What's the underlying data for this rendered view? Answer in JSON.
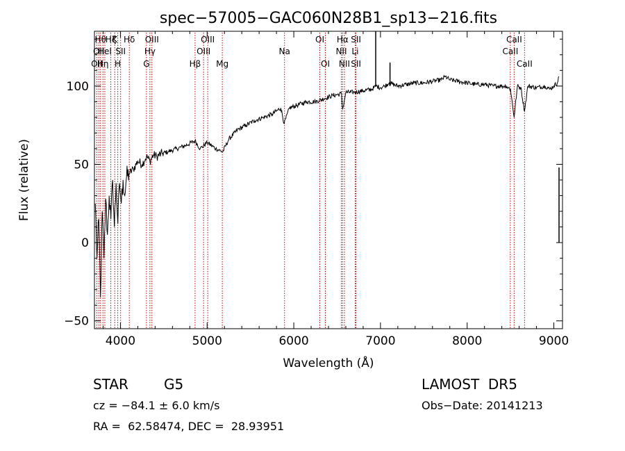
{
  "chart_data": {
    "type": "line",
    "title": "spec−57005−GAC060N28B1_sp13−216.fits",
    "xlabel": "Wavelength (Å)",
    "ylabel": "Flux (relative)",
    "xlim": [
      3700,
      9100
    ],
    "ylim": [
      -55,
      135
    ],
    "xticks": [
      "4000",
      "5000",
      "6000",
      "7000",
      "8000",
      "9000"
    ],
    "yticks": [
      "−50",
      "0",
      "50",
      "100"
    ],
    "xtick_values": [
      4000,
      5000,
      6000,
      7000,
      8000,
      9000
    ],
    "ytick_values": [
      -50,
      0,
      50,
      100
    ],
    "grid": false,
    "series": [
      {
        "x": [
          3710,
          3730,
          3750,
          3770,
          3790,
          3810,
          3830,
          3850,
          3870,
          3890,
          3910,
          3930,
          3950,
          3970,
          3990,
          4010,
          4030,
          4050,
          4070,
          4100,
          4150,
          4200,
          4250,
          4300,
          4340,
          4380,
          4420,
          4480,
          4550,
          4650,
          4750,
          4860,
          4920,
          5000,
          5100,
          5180,
          5250,
          5350,
          5450,
          5550,
          5650,
          5750,
          5850,
          5890,
          5950,
          6050,
          6150,
          6250,
          6350,
          6450,
          6550,
          6563,
          6600,
          6700,
          6800,
          6900,
          6950,
          7000,
          7050,
          7100,
          7200,
          7300,
          7400,
          7500,
          7600,
          7700,
          7750,
          7800,
          7900,
          8000,
          8100,
          8200,
          8300,
          8400,
          8450,
          8500,
          8542,
          8580,
          8620,
          8662,
          8700,
          8800,
          8900,
          8950,
          9000,
          9040,
          9060
        ],
        "y": [
          25,
          -10,
          15,
          -35,
          20,
          -10,
          28,
          5,
          30,
          15,
          40,
          10,
          38,
          12,
          38,
          25,
          40,
          30,
          42,
          44,
          47,
          52,
          50,
          55,
          52,
          56,
          55,
          57,
          58,
          60,
          62,
          65,
          60,
          64,
          60,
          58,
          66,
          72,
          75,
          78,
          80,
          82,
          86,
          76,
          86,
          88,
          90,
          90,
          92,
          94,
          95,
          85,
          96,
          96,
          97,
          98,
          100,
          99,
          100,
          102,
          100,
          101,
          102,
          102,
          103,
          104,
          106,
          104,
          103,
          102,
          101,
          101,
          100,
          100,
          100,
          98,
          80,
          100,
          99,
          84,
          100,
          99,
          100,
          98,
          100,
          102,
          106
        ]
      }
    ],
    "spikes": [
      {
        "x": 6945,
        "y": 135
      },
      {
        "x": 7110,
        "y": 115
      },
      {
        "x": 9060,
        "y": 48
      }
    ],
    "spectral_lines": [
      {
        "wl": 3727,
        "labels": [
          {
            "text": "OII",
            "row": 2
          }
        ]
      },
      {
        "wl": 3750,
        "labels": [
          {
            "text": "OII",
            "row": 1
          }
        ]
      },
      {
        "wl": 3770,
        "labels": [
          {
            "text": "Hθ",
            "row": 0
          }
        ]
      },
      {
        "wl": 3798,
        "labels": [
          {
            "text": "Hη",
            "row": 2
          }
        ]
      },
      {
        "wl": 3820,
        "labels": [
          {
            "text": "HeI",
            "row": 1
          }
        ]
      },
      {
        "wl": 3889,
        "labels": [
          {
            "text": "Hζ",
            "row": 0
          }
        ]
      },
      {
        "wl": 3934,
        "labels": [
          {
            "text": "K",
            "row": 0
          }
        ]
      },
      {
        "wl": 3969,
        "labels": [
          {
            "text": "H",
            "row": 2
          }
        ]
      },
      {
        "wl": 4002,
        "labels": [
          {
            "text": "SII",
            "row": 1
          }
        ]
      },
      {
        "wl": 4102,
        "labels": [
          {
            "text": "Hδ",
            "row": 0
          }
        ]
      },
      {
        "wl": 4300,
        "labels": [
          {
            "text": "G",
            "row": 2
          }
        ]
      },
      {
        "wl": 4340,
        "labels": [
          {
            "text": "Hγ",
            "row": 1
          }
        ]
      },
      {
        "wl": 4363,
        "labels": [
          {
            "text": "OIII",
            "row": 0
          }
        ]
      },
      {
        "wl": 4861,
        "labels": [
          {
            "text": "Hβ",
            "row": 2
          }
        ]
      },
      {
        "wl": 4959,
        "labels": [
          {
            "text": "OIII",
            "row": 1
          }
        ]
      },
      {
        "wl": 5007,
        "labels": [
          {
            "text": "OIII",
            "row": 0
          }
        ]
      },
      {
        "wl": 5175,
        "labels": [
          {
            "text": "Mg",
            "row": 2
          }
        ]
      },
      {
        "wl": 5893,
        "labels": [
          {
            "text": "Na",
            "row": 1
          }
        ]
      },
      {
        "wl": 6300,
        "labels": [
          {
            "text": "OI",
            "row": 0
          }
        ]
      },
      {
        "wl": 6364,
        "labels": [
          {
            "text": "OI",
            "row": 2
          }
        ]
      },
      {
        "wl": 6548,
        "labels": [
          {
            "text": "NII",
            "row": 1
          }
        ]
      },
      {
        "wl": 6563,
        "labels": [
          {
            "text": "Hα",
            "row": 0
          }
        ]
      },
      {
        "wl": 6584,
        "labels": [
          {
            "text": "NII",
            "row": 2
          }
        ]
      },
      {
        "wl": 6708,
        "labels": [
          {
            "text": "Li",
            "row": 1
          }
        ]
      },
      {
        "wl": 6717,
        "labels": [
          {
            "text": "SII",
            "row": 0
          },
          {
            "text": "SII",
            "row": 2
          }
        ]
      },
      {
        "wl": 8498,
        "labels": [
          {
            "text": "CaII",
            "row": 1
          }
        ]
      },
      {
        "wl": 8542,
        "labels": [
          {
            "text": "CaII",
            "row": 0
          }
        ]
      },
      {
        "wl": 8662,
        "labels": [
          {
            "text": "CaII",
            "row": 2
          }
        ]
      }
    ],
    "colors": {
      "spectrum": "#000000",
      "line_marker": "#c00000"
    }
  },
  "info": {
    "class_label": "STAR",
    "subclass": "G5",
    "survey": "LAMOST  DR5",
    "cz_text": "cz = −84.1 ± 6.0 km/s",
    "obs_date": "Obs−Date: 20141213",
    "coords": "RA =  62.58474, DEC =  28.93951"
  }
}
